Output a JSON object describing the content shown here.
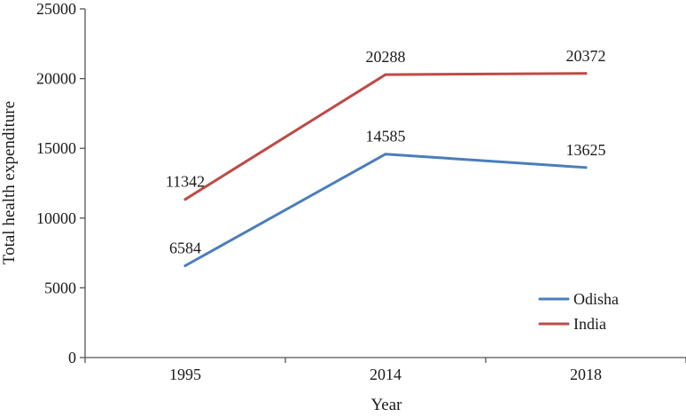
{
  "chart_data": {
    "type": "line",
    "title": "",
    "xlabel": "Year",
    "ylabel": "Total health expenditure",
    "categories": [
      "1995",
      "2014",
      "2018"
    ],
    "ylim": [
      0,
      25000
    ],
    "yticks": [
      0,
      5000,
      10000,
      15000,
      20000,
      25000
    ],
    "series": [
      {
        "name": "Odisha",
        "values": [
          6584,
          14585,
          13625
        ],
        "color": "#4a7ebb"
      },
      {
        "name": "India",
        "values": [
          11342,
          20288,
          20372
        ],
        "color": "#be4b48"
      }
    ],
    "data_labels": true,
    "grid": false,
    "legend": "bottom-right"
  }
}
